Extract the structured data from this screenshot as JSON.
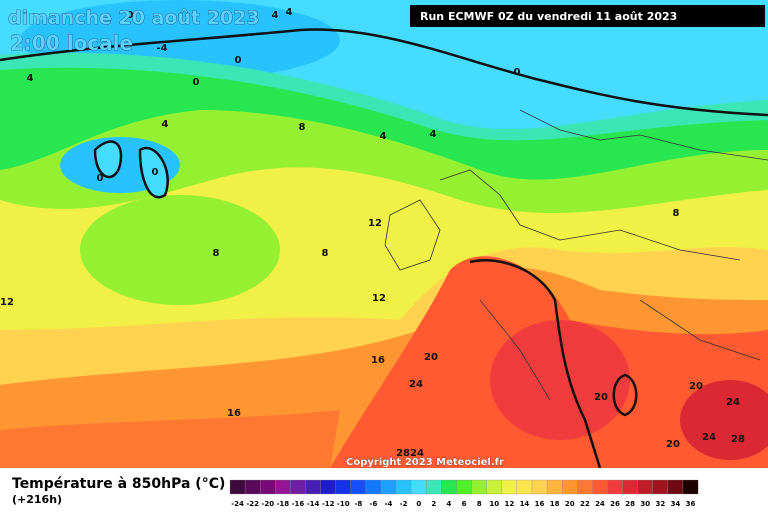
{
  "header": {
    "date": "dimanche 20 août 2023",
    "time": "2:00 locale",
    "run": "Run ECMWF 0Z du vendredi 11 août 2023"
  },
  "map": {
    "contour_labels": [
      "0",
      "4",
      "4",
      "-4",
      "0",
      "0",
      "4",
      "0",
      "4",
      "8",
      "4",
      "4",
      "0",
      "0",
      "12",
      "8",
      "8",
      "8",
      "12",
      "12",
      "16",
      "20",
      "24",
      "16",
      "20",
      "20",
      "24",
      "20",
      "24",
      "28"
    ],
    "geopotential_label": "2824",
    "copyright": "Copyright 2023 Meteociel.fr"
  },
  "legend": {
    "title": "Température à 850hPa (°C)",
    "subtitle": "(+216h)",
    "scale": [
      {
        "label": "-24",
        "color": "#3c0a3c"
      },
      {
        "label": "-22",
        "color": "#5a0a5a"
      },
      {
        "label": "-20",
        "color": "#780a78"
      },
      {
        "label": "-18",
        "color": "#961496"
      },
      {
        "label": "-16",
        "color": "#6e1ea0"
      },
      {
        "label": "-14",
        "color": "#461eb4"
      },
      {
        "label": "-12",
        "color": "#1e1ec8"
      },
      {
        "label": "-10",
        "color": "#1432e6"
      },
      {
        "label": "-8",
        "color": "#1450ff"
      },
      {
        "label": "-6",
        "color": "#1478ff"
      },
      {
        "label": "-4",
        "color": "#1ea0ff"
      },
      {
        "label": "-2",
        "color": "#28c3ff"
      },
      {
        "label": "0",
        "color": "#46dcff"
      },
      {
        "label": "2",
        "color": "#3ce6b4"
      },
      {
        "label": "4",
        "color": "#28e650"
      },
      {
        "label": "6",
        "color": "#50f028"
      },
      {
        "label": "8",
        "color": "#96f032"
      },
      {
        "label": "10",
        "color": "#c8f03c"
      },
      {
        "label": "12",
        "color": "#f0f046"
      },
      {
        "label": "14",
        "color": "#ffe650"
      },
      {
        "label": "16",
        "color": "#ffd250"
      },
      {
        "label": "18",
        "color": "#ffb43c"
      },
      {
        "label": "20",
        "color": "#ff9632"
      },
      {
        "label": "22",
        "color": "#ff7832"
      },
      {
        "label": "24",
        "color": "#ff5a32"
      },
      {
        "label": "26",
        "color": "#f03c3c"
      },
      {
        "label": "28",
        "color": "#dc2832"
      },
      {
        "label": "30",
        "color": "#be1e28"
      },
      {
        "label": "32",
        "color": "#a01420"
      },
      {
        "label": "34",
        "color": "#6e0a14"
      },
      {
        "label": "36",
        "color": "#1e0000"
      }
    ]
  }
}
